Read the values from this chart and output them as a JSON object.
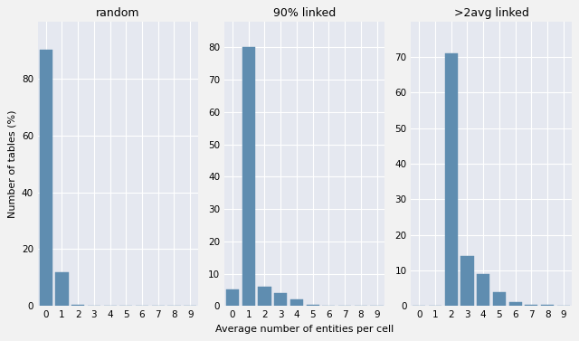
{
  "subplots": [
    {
      "title": "random",
      "values": [
        90,
        12,
        0.5,
        0,
        0,
        0,
        0,
        0,
        0,
        0
      ],
      "ylim": [
        0,
        100
      ],
      "yticks": [
        0,
        20,
        40,
        60,
        80
      ]
    },
    {
      "title": "90% linked",
      "values": [
        5,
        80,
        6,
        4,
        2,
        0.3,
        0,
        0.2,
        0,
        0
      ],
      "ylim": [
        0,
        88
      ],
      "yticks": [
        0,
        10,
        20,
        30,
        40,
        50,
        60,
        70,
        80
      ]
    },
    {
      "title": ">2avg linked",
      "values": [
        0,
        0,
        71,
        14,
        9,
        4,
        1,
        0.3,
        0.2,
        0
      ],
      "ylim": [
        0,
        80
      ],
      "yticks": [
        0,
        10,
        20,
        30,
        40,
        50,
        60,
        70
      ]
    }
  ],
  "x_categories": [
    0,
    1,
    2,
    3,
    4,
    5,
    6,
    7,
    8,
    9
  ],
  "xlabel": "Average number of entities per cell",
  "ylabel": "Number of tables (%)",
  "bar_color": "#5f8db0",
  "bar_edge_color": "#5f8db0",
  "bg_color": "#e5e8f0",
  "grid_color": "#ffffff",
  "fig_bg_color": "#f2f2f2",
  "title_fontsize": 9,
  "label_fontsize": 8,
  "tick_fontsize": 7.5
}
